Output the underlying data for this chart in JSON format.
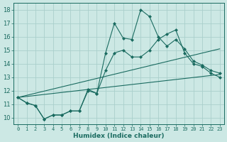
{
  "xlabel": "Humidex (Indice chaleur)",
  "bg_color": "#cce8e4",
  "line_color": "#1a6b60",
  "grid_color": "#aacfcc",
  "xlim": [
    -0.5,
    23.5
  ],
  "ylim": [
    9.5,
    18.5
  ],
  "yticks": [
    10,
    11,
    12,
    13,
    14,
    15,
    16,
    17,
    18
  ],
  "xticks": [
    0,
    1,
    2,
    3,
    4,
    5,
    6,
    7,
    8,
    9,
    10,
    11,
    12,
    13,
    14,
    15,
    16,
    17,
    18,
    19,
    20,
    21,
    22,
    23
  ],
  "series": [
    {
      "x": [
        0,
        1,
        2,
        3,
        4,
        5,
        6,
        7,
        8,
        9,
        10,
        11,
        12,
        13,
        14,
        15,
        16,
        17,
        18,
        19,
        20,
        21,
        22,
        23
      ],
      "y": [
        11.5,
        11.1,
        10.9,
        9.9,
        10.2,
        10.2,
        10.5,
        10.5,
        12.1,
        11.8,
        14.8,
        17.0,
        15.9,
        15.8,
        18.0,
        17.5,
        16.0,
        15.3,
        15.8,
        15.1,
        14.2,
        13.9,
        13.5,
        13.3
      ],
      "has_markers": true
    },
    {
      "x": [
        0,
        1,
        2,
        3,
        4,
        5,
        6,
        7,
        8,
        9,
        10,
        11,
        12,
        13,
        14,
        15,
        16,
        17,
        18,
        19,
        20,
        21,
        22,
        23
      ],
      "y": [
        11.5,
        11.1,
        10.9,
        9.9,
        10.2,
        10.2,
        10.5,
        10.5,
        12.0,
        11.8,
        13.5,
        14.8,
        15.0,
        14.5,
        14.5,
        15.0,
        15.8,
        16.2,
        16.5,
        14.8,
        14.0,
        13.8,
        13.3,
        13.0
      ],
      "has_markers": true
    },
    {
      "x": [
        0,
        23
      ],
      "y": [
        11.5,
        15.1
      ],
      "has_markers": false
    },
    {
      "x": [
        0,
        23
      ],
      "y": [
        11.5,
        13.2
      ],
      "has_markers": false
    }
  ]
}
